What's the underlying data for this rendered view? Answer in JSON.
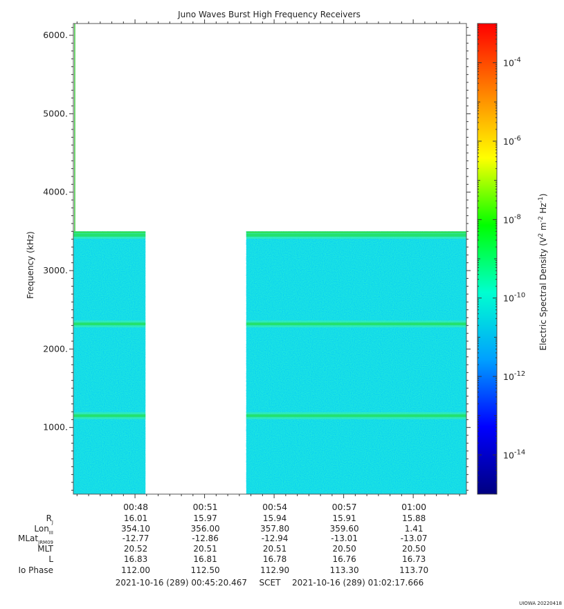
{
  "chart_data": {
    "type": "heatmap",
    "title": "Juno Waves Burst High Frequency Receivers",
    "ylabel": "Frequency (kHz)",
    "ylim": [
      150,
      6150
    ],
    "yticks": [
      1000,
      2000,
      3000,
      4000,
      5000,
      6000
    ],
    "ytick_labels": [
      "1000.",
      "2000.",
      "3000.",
      "4000.",
      "5000.",
      "6000."
    ],
    "x_time_labels": [
      "00:48",
      "00:51",
      "00:54",
      "00:57",
      "01:00"
    ],
    "x_time_minutes": [
      48,
      51,
      54,
      57,
      60
    ],
    "xlim_minutes": [
      45.3411,
      62.2944
    ],
    "data_blocks": [
      {
        "start_minute": 45.3411,
        "end_minute": 48.45,
        "freq_min": 150,
        "freq_max": 3500
      },
      {
        "start_minute": 52.8,
        "end_minute": 62.2944,
        "freq_min": 150,
        "freq_max": 3500
      }
    ],
    "emission_bands_khz": [
      1150,
      2320,
      3450
    ],
    "colorbar": {
      "label": "Electric Spectral Density (V",
      "label_parts": [
        "Electric Spectral Density (V",
        "2",
        " m",
        "-2",
        " Hz",
        "-1",
        ")"
      ],
      "scale": "log",
      "range": [
        "1e-15",
        "1e-3"
      ],
      "tick_base": "10",
      "tick_exponents": [
        "-4",
        "-6",
        "-8",
        "-10",
        "-12",
        "-14"
      ],
      "tick_log_values": [
        -4,
        -6,
        -8,
        -10,
        -12,
        -14
      ],
      "colors": [
        "#000080",
        "#0000ff",
        "#00a0ff",
        "#00ffd0",
        "#00ff00",
        "#ffff00",
        "#ff8000",
        "#ff0000"
      ]
    },
    "ephemeris": {
      "row_labels": [
        {
          "main": "R",
          "sub": "J"
        },
        {
          "main": "Lon",
          "sub": "III"
        },
        {
          "main": "MLat",
          "sub": "JRM09"
        },
        {
          "main": "MLT",
          "sub": ""
        },
        {
          "main": "L",
          "sub": ""
        },
        {
          "main": "Io Phase",
          "sub": ""
        }
      ],
      "rows": [
        [
          "16.01",
          "15.97",
          "15.94",
          "15.91",
          "15.88"
        ],
        [
          "354.10",
          "356.00",
          "357.80",
          "359.60",
          "1.41"
        ],
        [
          "-12.77",
          "-12.86",
          "-12.94",
          "-13.01",
          "-13.07"
        ],
        [
          "20.52",
          "20.51",
          "20.51",
          "20.50",
          "20.50"
        ],
        [
          "16.83",
          "16.81",
          "16.78",
          "16.76",
          "16.73"
        ],
        [
          "112.00",
          "112.50",
          "112.90",
          "113.30",
          "113.70"
        ]
      ]
    },
    "time_range": {
      "start": "2021-10-16 (289) 00:45:20.467",
      "label": "SCET",
      "end": "2021-10-16 (289) 01:02:17.666"
    },
    "footer": "UIOWA 20220418"
  }
}
